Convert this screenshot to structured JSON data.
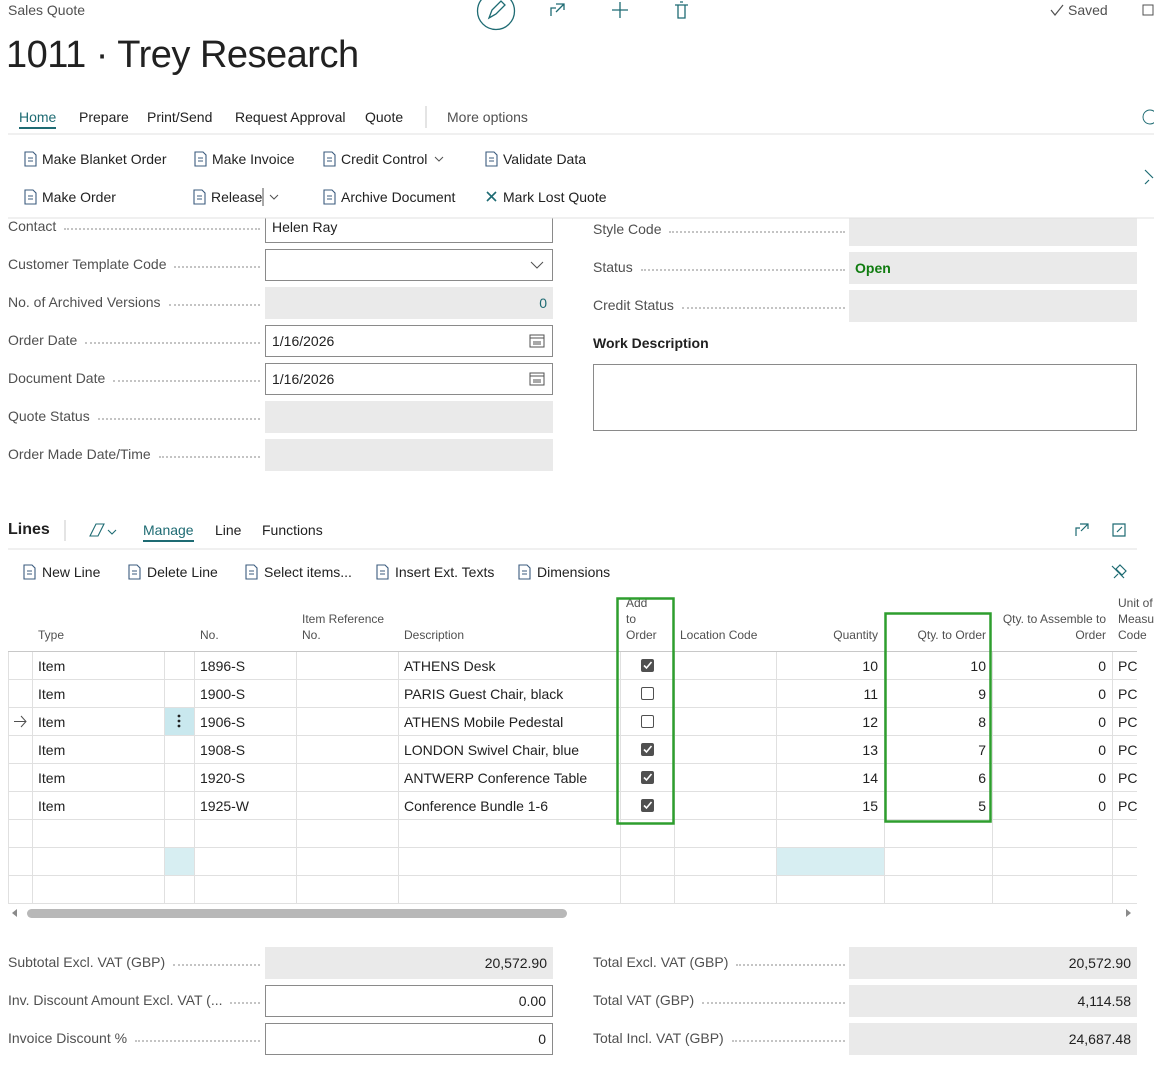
{
  "header": {
    "page_type": "Sales Quote",
    "title": "1011 · Trey Research",
    "status": "Saved"
  },
  "tabs": {
    "items": [
      "Home",
      "Prepare",
      "Print/Send",
      "Request Approval",
      "Quote"
    ],
    "more": "More options",
    "active": 0
  },
  "actions": {
    "row1": [
      "Make Blanket Order",
      "Make Invoice",
      "Credit Control",
      "Validate Data"
    ],
    "row2": [
      "Make Order",
      "Release",
      "Archive Document",
      "Mark Lost Quote"
    ]
  },
  "general": {
    "left": [
      {
        "label": "Contact",
        "value": "Helen Ray",
        "kind": "input"
      },
      {
        "label": "Customer Template Code",
        "kind": "select"
      },
      {
        "label": "No. of Archived Versions",
        "value": "0",
        "kind": "number"
      },
      {
        "label": "Order Date",
        "value": "1/16/2026",
        "kind": "date"
      },
      {
        "label": "Document Date",
        "value": "1/16/2026",
        "kind": "date"
      },
      {
        "label": "Quote Status",
        "kind": "readonly"
      },
      {
        "label": "Order Made Date/Time",
        "kind": "readonly"
      }
    ],
    "right": [
      {
        "label": "Style Code",
        "kind": "readonly"
      },
      {
        "label": "Status",
        "value": "Open",
        "kind": "status"
      },
      {
        "label": "Credit Status",
        "kind": "readonly"
      }
    ],
    "work_description": "Work Description"
  },
  "lines": {
    "title": "Lines",
    "tabs": [
      "Manage",
      "Line",
      "Functions"
    ],
    "active_tab": 0,
    "actions": [
      "New Line",
      "Delete Line",
      "Select items...",
      "Insert Ext. Texts",
      "Dimensions"
    ],
    "columns": [
      "Type",
      "No.",
      "Item Reference No.",
      "Description",
      "Add to Order",
      "Location Code",
      "Quantity",
      "Qty. to Order",
      "Qty. to Assemble to Order",
      "Unit of Measure Code"
    ],
    "current_row": 2,
    "rows": [
      {
        "type": "Item",
        "no": "1896-S",
        "description": "ATHENS Desk",
        "add_to_order": true,
        "quantity": "10",
        "qty_to_order": "10",
        "qty_to_assemble": "0",
        "uom": "PCS"
      },
      {
        "type": "Item",
        "no": "1900-S",
        "description": "PARIS Guest Chair, black",
        "add_to_order": false,
        "quantity": "11",
        "qty_to_order": "9",
        "qty_to_assemble": "0",
        "uom": "PCS"
      },
      {
        "type": "Item",
        "no": "1906-S",
        "description": "ATHENS Mobile Pedestal",
        "add_to_order": false,
        "quantity": "12",
        "qty_to_order": "8",
        "qty_to_assemble": "0",
        "uom": "PCS"
      },
      {
        "type": "Item",
        "no": "1908-S",
        "description": "LONDON Swivel Chair, blue",
        "add_to_order": true,
        "quantity": "13",
        "qty_to_order": "7",
        "qty_to_assemble": "0",
        "uom": "PCS"
      },
      {
        "type": "Item",
        "no": "1920-S",
        "description": "ANTWERP Conference Table",
        "add_to_order": true,
        "quantity": "14",
        "qty_to_order": "6",
        "qty_to_assemble": "0",
        "uom": "PCS"
      },
      {
        "type": "Item",
        "no": "1925-W",
        "description": "Conference Bundle 1-6",
        "add_to_order": true,
        "quantity": "15",
        "qty_to_order": "5",
        "qty_to_assemble": "0",
        "uom": "PCS"
      }
    ]
  },
  "totals": {
    "left": [
      {
        "label": "Subtotal Excl. VAT (GBP)",
        "value": "20,572.90",
        "kind": "readonly"
      },
      {
        "label": "Inv. Discount Amount Excl. VAT (...",
        "value": "0.00",
        "kind": "input"
      },
      {
        "label": "Invoice Discount %",
        "value": "0",
        "kind": "input"
      }
    ],
    "right": [
      {
        "label": "Total Excl. VAT (GBP)",
        "value": "20,572.90",
        "kind": "readonly"
      },
      {
        "label": "Total VAT (GBP)",
        "value": "4,114.58",
        "kind": "readonly"
      },
      {
        "label": "Total Incl. VAT (GBP)",
        "value": "24,687.48",
        "kind": "readonly"
      }
    ]
  }
}
